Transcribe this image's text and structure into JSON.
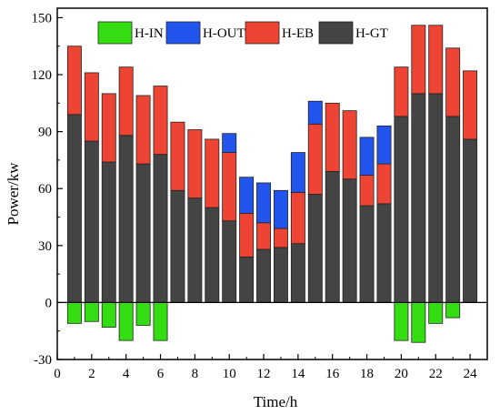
{
  "chart_data": {
    "type": "bar",
    "stacked": true,
    "xlabel": "Time/h",
    "ylabel": "Power/kw",
    "xlim": [
      0,
      25
    ],
    "ylim": [
      -30,
      155
    ],
    "xticks": [
      "0",
      "2",
      "4",
      "6",
      "8",
      "10",
      "12",
      "14",
      "16",
      "18",
      "20",
      "22",
      "24"
    ],
    "yticks": [
      "-30",
      "0",
      "30",
      "60",
      "90",
      "120",
      "150"
    ],
    "grid": false,
    "legend_position": "top",
    "categories": [
      1,
      2,
      3,
      4,
      5,
      6,
      7,
      8,
      9,
      10,
      11,
      12,
      13,
      14,
      15,
      16,
      17,
      18,
      19,
      20,
      21,
      22,
      23,
      24
    ],
    "series": [
      {
        "name": "H-IN",
        "color": "#33dd11",
        "values": [
          -11,
          -10,
          -13,
          -20,
          -12,
          -20,
          0,
          0,
          0,
          0,
          0,
          0,
          0,
          0,
          0,
          0,
          0,
          0,
          0,
          -20,
          -21,
          -11,
          -8,
          0
        ]
      },
      {
        "name": "H-OUT",
        "color": "#2255ee",
        "values": [
          0,
          0,
          0,
          0,
          0,
          0,
          0,
          0,
          0,
          10,
          19,
          21,
          20,
          21,
          12,
          0,
          0,
          20,
          20,
          0,
          0,
          0,
          0,
          0
        ]
      },
      {
        "name": "H-EB",
        "color": "#ee4433",
        "values": [
          36,
          36,
          36,
          36,
          36,
          36,
          36,
          36,
          36,
          36,
          23,
          14,
          10,
          27,
          37,
          36,
          36,
          16,
          21,
          26,
          36,
          36,
          36,
          36
        ]
      },
      {
        "name": "H-GT",
        "color": "#444444",
        "values": [
          99,
          85,
          74,
          88,
          73,
          78,
          59,
          55,
          50,
          43,
          24,
          28,
          29,
          31,
          57,
          69,
          65,
          51,
          52,
          98,
          110,
          110,
          98,
          86
        ]
      }
    ]
  }
}
